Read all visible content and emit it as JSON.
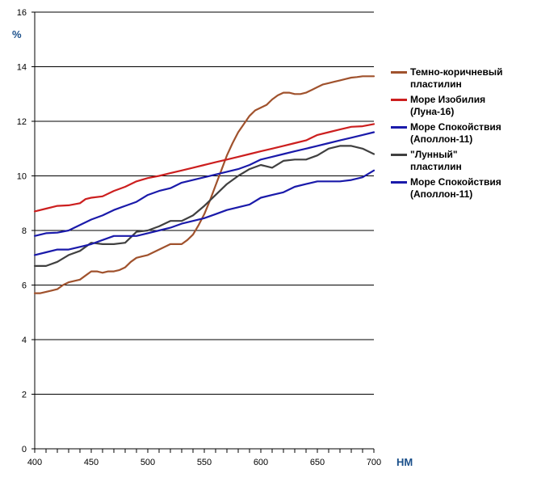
{
  "chart_data": {
    "type": "line",
    "ylabel": "%",
    "xlabel": "НМ",
    "xlim": [
      400,
      700
    ],
    "ylim": [
      0,
      16
    ],
    "x_ticks": [
      400,
      450,
      500,
      550,
      600,
      650,
      700
    ],
    "y_ticks": [
      0,
      2,
      4,
      6,
      8,
      10,
      12,
      14,
      16
    ],
    "grid": "horizontal",
    "legend": "right",
    "series": [
      {
        "name": "Темно-коричневый\nпластилин",
        "color": "#a0522d",
        "points": [
          [
            400,
            5.7
          ],
          [
            405,
            5.7
          ],
          [
            410,
            5.75
          ],
          [
            415,
            5.8
          ],
          [
            420,
            5.85
          ],
          [
            425,
            6.0
          ],
          [
            430,
            6.1
          ],
          [
            435,
            6.15
          ],
          [
            440,
            6.2
          ],
          [
            445,
            6.35
          ],
          [
            450,
            6.5
          ],
          [
            455,
            6.5
          ],
          [
            460,
            6.45
          ],
          [
            465,
            6.5
          ],
          [
            470,
            6.5
          ],
          [
            475,
            6.55
          ],
          [
            480,
            6.65
          ],
          [
            485,
            6.85
          ],
          [
            490,
            7.0
          ],
          [
            495,
            7.05
          ],
          [
            500,
            7.1
          ],
          [
            505,
            7.2
          ],
          [
            510,
            7.3
          ],
          [
            515,
            7.4
          ],
          [
            520,
            7.5
          ],
          [
            525,
            7.5
          ],
          [
            530,
            7.5
          ],
          [
            535,
            7.65
          ],
          [
            540,
            7.85
          ],
          [
            545,
            8.2
          ],
          [
            550,
            8.6
          ],
          [
            555,
            9.1
          ],
          [
            560,
            9.65
          ],
          [
            565,
            10.2
          ],
          [
            570,
            10.75
          ],
          [
            575,
            11.2
          ],
          [
            580,
            11.6
          ],
          [
            585,
            11.9
          ],
          [
            590,
            12.2
          ],
          [
            595,
            12.4
          ],
          [
            600,
            12.5
          ],
          [
            605,
            12.6
          ],
          [
            610,
            12.8
          ],
          [
            615,
            12.95
          ],
          [
            620,
            13.05
          ],
          [
            625,
            13.05
          ],
          [
            630,
            13.0
          ],
          [
            635,
            13.0
          ],
          [
            640,
            13.05
          ],
          [
            645,
            13.15
          ],
          [
            650,
            13.25
          ],
          [
            655,
            13.35
          ],
          [
            660,
            13.4
          ],
          [
            665,
            13.45
          ],
          [
            670,
            13.5
          ],
          [
            675,
            13.55
          ],
          [
            680,
            13.6
          ],
          [
            685,
            13.62
          ],
          [
            690,
            13.65
          ],
          [
            695,
            13.65
          ],
          [
            700,
            13.65
          ]
        ]
      },
      {
        "name": "Море Изобилия\n(Луна-16)",
        "color": "#cc1f1f",
        "points": [
          [
            400,
            8.7
          ],
          [
            410,
            8.8
          ],
          [
            420,
            8.9
          ],
          [
            430,
            8.92
          ],
          [
            440,
            9.0
          ],
          [
            445,
            9.15
          ],
          [
            450,
            9.2
          ],
          [
            460,
            9.25
          ],
          [
            470,
            9.45
          ],
          [
            480,
            9.6
          ],
          [
            490,
            9.8
          ],
          [
            500,
            9.92
          ],
          [
            510,
            10.0
          ],
          [
            520,
            10.1
          ],
          [
            530,
            10.2
          ],
          [
            540,
            10.3
          ],
          [
            550,
            10.4
          ],
          [
            560,
            10.5
          ],
          [
            570,
            10.6
          ],
          [
            580,
            10.7
          ],
          [
            590,
            10.8
          ],
          [
            600,
            10.9
          ],
          [
            610,
            11.0
          ],
          [
            620,
            11.1
          ],
          [
            630,
            11.2
          ],
          [
            640,
            11.3
          ],
          [
            650,
            11.5
          ],
          [
            660,
            11.6
          ],
          [
            670,
            11.7
          ],
          [
            680,
            11.8
          ],
          [
            690,
            11.82
          ],
          [
            700,
            11.9
          ]
        ]
      },
      {
        "name": "Море Спокойствия\n(Аполлон-11)",
        "color": "#1a1aaa",
        "points": [
          [
            400,
            7.8
          ],
          [
            410,
            7.9
          ],
          [
            420,
            7.92
          ],
          [
            430,
            8.0
          ],
          [
            440,
            8.2
          ],
          [
            450,
            8.4
          ],
          [
            460,
            8.55
          ],
          [
            470,
            8.75
          ],
          [
            480,
            8.9
          ],
          [
            490,
            9.05
          ],
          [
            500,
            9.3
          ],
          [
            510,
            9.45
          ],
          [
            520,
            9.55
          ],
          [
            530,
            9.75
          ],
          [
            540,
            9.85
          ],
          [
            550,
            9.95
          ],
          [
            560,
            10.05
          ],
          [
            570,
            10.15
          ],
          [
            580,
            10.25
          ],
          [
            590,
            10.4
          ],
          [
            600,
            10.6
          ],
          [
            610,
            10.7
          ],
          [
            620,
            10.8
          ],
          [
            630,
            10.9
          ],
          [
            640,
            11.0
          ],
          [
            650,
            11.1
          ],
          [
            660,
            11.2
          ],
          [
            670,
            11.3
          ],
          [
            680,
            11.4
          ],
          [
            690,
            11.5
          ],
          [
            700,
            11.6
          ]
        ]
      },
      {
        "name": "\"Лунный\"\nпластилин",
        "color": "#404040",
        "points": [
          [
            400,
            6.7
          ],
          [
            410,
            6.7
          ],
          [
            420,
            6.85
          ],
          [
            430,
            7.1
          ],
          [
            440,
            7.25
          ],
          [
            450,
            7.55
          ],
          [
            460,
            7.5
          ],
          [
            470,
            7.5
          ],
          [
            480,
            7.55
          ],
          [
            490,
            7.95
          ],
          [
            500,
            8.0
          ],
          [
            510,
            8.15
          ],
          [
            520,
            8.35
          ],
          [
            530,
            8.35
          ],
          [
            540,
            8.55
          ],
          [
            550,
            8.9
          ],
          [
            560,
            9.3
          ],
          [
            570,
            9.7
          ],
          [
            580,
            10.0
          ],
          [
            590,
            10.25
          ],
          [
            600,
            10.4
          ],
          [
            605,
            10.35
          ],
          [
            610,
            10.3
          ],
          [
            620,
            10.55
          ],
          [
            630,
            10.6
          ],
          [
            640,
            10.6
          ],
          [
            650,
            10.75
          ],
          [
            660,
            11.0
          ],
          [
            670,
            11.1
          ],
          [
            680,
            11.1
          ],
          [
            690,
            11.0
          ],
          [
            700,
            10.8
          ]
        ]
      },
      {
        "name": "Море Спокойствия\n(Аполлон-11)",
        "color": "#1a1aaa",
        "points": [
          [
            400,
            7.1
          ],
          [
            410,
            7.2
          ],
          [
            420,
            7.3
          ],
          [
            430,
            7.3
          ],
          [
            440,
            7.4
          ],
          [
            450,
            7.5
          ],
          [
            460,
            7.65
          ],
          [
            470,
            7.8
          ],
          [
            480,
            7.8
          ],
          [
            490,
            7.8
          ],
          [
            500,
            7.9
          ],
          [
            510,
            8.0
          ],
          [
            520,
            8.1
          ],
          [
            530,
            8.25
          ],
          [
            540,
            8.35
          ],
          [
            550,
            8.45
          ],
          [
            560,
            8.6
          ],
          [
            570,
            8.75
          ],
          [
            580,
            8.85
          ],
          [
            590,
            8.95
          ],
          [
            600,
            9.2
          ],
          [
            610,
            9.3
          ],
          [
            620,
            9.4
          ],
          [
            630,
            9.6
          ],
          [
            640,
            9.7
          ],
          [
            650,
            9.8
          ],
          [
            660,
            9.8
          ],
          [
            670,
            9.8
          ],
          [
            680,
            9.85
          ],
          [
            690,
            9.95
          ],
          [
            700,
            10.2
          ]
        ]
      }
    ]
  }
}
